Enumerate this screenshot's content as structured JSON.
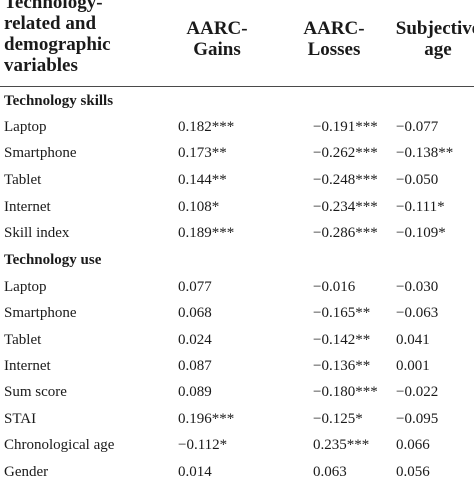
{
  "header": {
    "first_col": "Technology-\nrelated and\ndemographic\nvariables",
    "col1": "AARC-\nGains",
    "col2": "AARC-\nLosses",
    "col3": "Subjective\nage"
  },
  "sections": [
    {
      "title": "Technology skills",
      "rows": [
        {
          "label": "Laptop",
          "c1": "0.182***",
          "c2": "−0.191***",
          "c3": "−0.077"
        },
        {
          "label": "Smartphone",
          "c1": "0.173**",
          "c2": "−0.262***",
          "c3": "−0.138**"
        },
        {
          "label": "Tablet",
          "c1": "0.144**",
          "c2": "−0.248***",
          "c3": "−0.050"
        },
        {
          "label": "Internet",
          "c1": "0.108*",
          "c2": "−0.234***",
          "c3": "−0.111*"
        },
        {
          "label": "Skill index",
          "c1": "0.189***",
          "c2": "−0.286***",
          "c3": "−0.109*"
        }
      ]
    },
    {
      "title": "Technology use",
      "rows": [
        {
          "label": "Laptop",
          "c1": "0.077",
          "c2": "−0.016",
          "c3": "−0.030"
        },
        {
          "label": "Smartphone",
          "c1": "0.068",
          "c2": "−0.165**",
          "c3": "−0.063"
        },
        {
          "label": "Tablet",
          "c1": "0.024",
          "c2": "−0.142**",
          "c3": "0.041"
        },
        {
          "label": "Internet",
          "c1": "0.087",
          "c2": "−0.136**",
          "c3": "0.001"
        },
        {
          "label": "Sum score",
          "c1": "0.089",
          "c2": "−0.180***",
          "c3": "−0.022"
        },
        {
          "label": "STAI",
          "c1": "0.196***",
          "c2": "−0.125*",
          "c3": "−0.095"
        },
        {
          "label": "Chronological age",
          "c1": "−0.112*",
          "c2": "0.235***",
          "c3": "0.066"
        },
        {
          "label": "Gender",
          "c1": "0.014",
          "c2": "0.063",
          "c3": "0.056"
        }
      ]
    }
  ]
}
